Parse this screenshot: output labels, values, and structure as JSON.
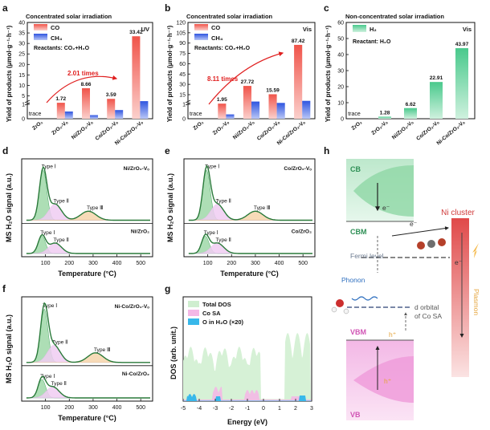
{
  "chart_data": [
    {
      "panel": "a",
      "type": "bar",
      "title": "Concentrated solar irradiation",
      "tag": "UV",
      "reactants": "Reactants: CO₂+H₂O",
      "ylabel": "Yield of products (μmol·g⁻¹·h⁻¹)",
      "ylim": [
        0,
        40
      ],
      "ylim_note": "broken axis below 1",
      "yticks": [
        "0",
        "1",
        "5",
        "10",
        "15",
        "20",
        "25",
        "30",
        "35",
        "40"
      ],
      "categories": [
        "ZrO₂",
        "ZrO₂-Vₒ",
        "Ni/ZrO₂-Vₒ",
        "Co/ZrO₂-Vₒ",
        "Ni-Co/ZrO₂-Vₒ"
      ],
      "series": [
        {
          "name": "CO",
          "color": "#f05a50",
          "values": [
            0,
            1.72,
            8.66,
            3.59,
            33.42
          ],
          "labels": [
            "trace",
            "1.72",
            "8.66",
            "3.59",
            "33.42"
          ]
        },
        {
          "name": "CH₄",
          "color": "#3f63e8",
          "values": [
            0,
            0.5,
            0.25,
            0.6,
            2.5
          ]
        }
      ],
      "annotation": "2.01 times"
    },
    {
      "panel": "b",
      "type": "bar",
      "title": "Concentrated solar irradiation",
      "tag": "Vis",
      "reactants": "Reactants: CO₂+H₂O",
      "ylabel": "Yield of products (μmol·g⁻¹·h⁻¹)",
      "ylim": [
        0,
        120
      ],
      "yticks": [
        "0",
        "1",
        "15",
        "30",
        "45",
        "60",
        "75",
        "90",
        "105",
        "120"
      ],
      "categories": [
        "ZrO₂",
        "ZrO₂-Vₒ",
        "Ni/ZrO₂-Vₒ",
        "Co/ZrO₂-Vₒ",
        "Ni-Co/ZrO₂-Vₒ"
      ],
      "series": [
        {
          "name": "CO",
          "color": "#f05a50",
          "values": [
            0,
            1.95,
            27.72,
            15.59,
            87.42
          ],
          "labels": [
            "trace",
            "1.95",
            "27.72",
            "15.59",
            "87.42"
          ]
        },
        {
          "name": "CH₄",
          "color": "#3f63e8",
          "values": [
            0,
            0.3,
            5,
            3,
            6
          ]
        }
      ],
      "annotation": "8.11 times"
    },
    {
      "panel": "c",
      "type": "bar",
      "title": "Non-concentrated solar irradiation",
      "tag": "Vis",
      "reactants": "Reactant: H₂O",
      "ylabel": "Yield of products (μmol·g⁻¹·h⁻¹)",
      "ylim": [
        0,
        60
      ],
      "yticks": [
        "0",
        "10",
        "20",
        "30",
        "40",
        "50",
        "60"
      ],
      "categories": [
        "ZrO₂",
        "ZrO₂-Vₒ",
        "Ni/ZrO₂-Vₒ",
        "Co/ZrO₂-Vₒ",
        "Ni-Co/ZrO₂-Vₒ"
      ],
      "series": [
        {
          "name": "H₂",
          "color": "#5fd39a",
          "values": [
            0,
            1.28,
            6.62,
            22.91,
            43.97
          ],
          "labels": [
            "trace",
            "1.28",
            "6.62",
            "22.91",
            "43.97"
          ]
        }
      ]
    },
    {
      "panel": "d",
      "type": "line",
      "xlabel": "Temperature (°C)",
      "ylabel": "MS H₂O signal (a.u.)",
      "xlim": [
        0,
        550
      ],
      "xticks": [
        "100",
        "200",
        "300",
        "400",
        "500"
      ],
      "samples": [
        {
          "name": "Ni/ZrO₂-Vₒ",
          "peaks": [
            {
              "label": "Type Ⅰ",
              "center": 90
            },
            {
              "label": "Type Ⅱ",
              "center": 140
            },
            {
              "label": "Type Ⅲ",
              "center": 280
            }
          ]
        },
        {
          "name": "Ni/ZrO₂",
          "peaks": [
            {
              "label": "Type Ⅰ",
              "center": 85
            },
            {
              "label": "Type Ⅱ",
              "center": 140
            }
          ]
        }
      ]
    },
    {
      "panel": "e",
      "type": "line",
      "xlabel": "Temperature (°C)",
      "ylabel": "MS H₂O signal (a.u.)",
      "xlim": [
        0,
        550
      ],
      "xticks": [
        "100",
        "200",
        "300",
        "400",
        "500"
      ],
      "samples": [
        {
          "name": "Co/ZrO₂-Vₒ",
          "peaks": [
            {
              "label": "Type Ⅰ",
              "center": 95
            },
            {
              "label": "Type Ⅱ",
              "center": 140
            },
            {
              "label": "Type Ⅲ",
              "center": 300
            }
          ]
        },
        {
          "name": "Co/ZrO₂",
          "peaks": [
            {
              "label": "Type Ⅰ",
              "center": 90
            },
            {
              "label": "Type Ⅱ",
              "center": 140
            }
          ]
        }
      ]
    },
    {
      "panel": "f",
      "type": "line",
      "xlabel": "Temperature (°C)",
      "ylabel": "MS H₂O signal (a.u.)",
      "xlim": [
        0,
        550
      ],
      "xticks": [
        "100",
        "200",
        "300",
        "400",
        "500"
      ],
      "samples": [
        {
          "name": "Ni-Co/ZrO₂-Vₒ",
          "peaks": [
            {
              "label": "Type Ⅰ",
              "center": 95
            },
            {
              "label": "Type Ⅱ",
              "center": 135
            },
            {
              "label": "Type Ⅲ",
              "center": 310
            }
          ]
        },
        {
          "name": "Ni-Co/ZrO₂",
          "peaks": [
            {
              "label": "Type Ⅰ",
              "center": 85
            },
            {
              "label": "Type Ⅱ",
              "center": 130
            }
          ]
        }
      ]
    },
    {
      "panel": "g",
      "type": "area",
      "xlabel": "Energy (eV)",
      "ylabel": "DOS (arb. unit.)",
      "xlim": [
        -5,
        3
      ],
      "xticks": [
        "-5",
        "-4",
        "-3",
        "-2",
        "-1",
        "0",
        "1",
        "2",
        "3"
      ],
      "legend": [
        "Total DOS",
        "Co SA",
        "O in H₂O (×20)"
      ],
      "legend_colors": [
        "#cfeecf",
        "#f4b8e6",
        "#38b8ea"
      ]
    }
  ],
  "diagram": {
    "panel": "h",
    "labels": {
      "cb": "CB",
      "cbm": "CBM",
      "electron": "e⁻",
      "ni_cluster": "Ni cluster",
      "fermi": "Fermi level",
      "phonon": "Phonon",
      "d_orbital_1": "d orbital",
      "d_orbital_2": "of Co SA",
      "vbm": "VBM",
      "vb": "VB",
      "hole": "h⁺",
      "plasmon": "Plasmon"
    }
  },
  "panel_labels": [
    "a",
    "b",
    "c",
    "d",
    "e",
    "f",
    "g",
    "h"
  ]
}
